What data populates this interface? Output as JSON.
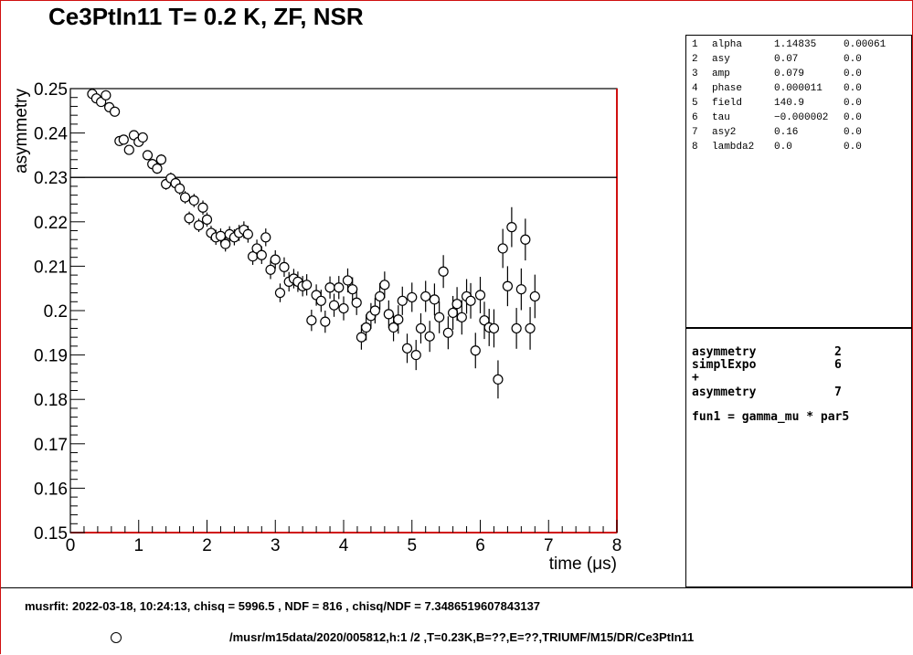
{
  "title": "Ce3PtIn11 T= 0.2 K, ZF, NSR",
  "parameters": [
    {
      "index": "1",
      "name": "alpha",
      "value": "1.14835",
      "error": "0.00061"
    },
    {
      "index": "2",
      "name": "asy",
      "value": "0.07",
      "error": "0.0"
    },
    {
      "index": "3",
      "name": "amp",
      "value": "0.079",
      "error": "0.0"
    },
    {
      "index": "4",
      "name": "phase",
      "value": "0.000011",
      "error": "0.0"
    },
    {
      "index": "5",
      "name": "field",
      "value": "140.9",
      "error": "0.0"
    },
    {
      "index": "6",
      "name": "tau",
      "value": "−0.000002",
      "error": "0.0"
    },
    {
      "index": "7",
      "name": "asy2",
      "value": "0.16",
      "error": "0.0"
    },
    {
      "index": "8",
      "name": "lambda2",
      "value": "0.0",
      "error": "0.0"
    }
  ],
  "theory": [
    {
      "name": "asymmetry",
      "param": "2"
    },
    {
      "name": "simplExpo",
      "param": "6"
    },
    {
      "name": "+",
      "param": ""
    },
    {
      "name": "asymmetry",
      "param": "7"
    }
  ],
  "function_line": "fun1 = gamma_mu * par5",
  "footer": {
    "fit_info": "musrfit: 2022-03-18, 10:24:13, chisq = 5996.5 , NDF = 816 , chisq/NDF = 7.3486519607843137",
    "run_path": "/musr/m15data/2020/005812,h:1 /2 ,T=0.23K,B=??,E=??,TRIUMF/M15/DR/Ce3PtIn11"
  },
  "colors": {
    "frame": "#d01010",
    "axis": "#000000",
    "marker_fill": "#ffffff"
  },
  "chart_data": {
    "type": "scatter",
    "title": "Ce3PtIn11 T= 0.2 K, ZF, NSR",
    "xlabel": "time (μs)",
    "ylabel": "asymmetry",
    "xlim": [
      0,
      8
    ],
    "ylim": [
      0.15,
      0.25
    ],
    "x_ticks": [
      "0",
      "1",
      "2",
      "3",
      "4",
      "5",
      "6",
      "7",
      "8"
    ],
    "y_ticks": [
      "0.15",
      "0.16",
      "0.17",
      "0.18",
      "0.19",
      "0.2",
      "0.21",
      "0.22",
      "0.23",
      "0.24",
      "0.25"
    ],
    "fit_line": {
      "y": 0.23
    },
    "grid": false,
    "series": [
      {
        "marker": "open-circle",
        "points": [
          [
            0.32,
            0.2488,
            0.0005
          ],
          [
            0.38,
            0.2478,
            0.0006
          ],
          [
            0.45,
            0.247,
            0.0006
          ],
          [
            0.52,
            0.2485,
            0.0007
          ],
          [
            0.57,
            0.2458,
            0.0008
          ],
          [
            0.65,
            0.2448,
            0.0008
          ],
          [
            0.72,
            0.2382,
            0.0009
          ],
          [
            0.78,
            0.2385,
            0.0009
          ],
          [
            0.86,
            0.2362,
            0.001
          ],
          [
            0.93,
            0.2395,
            0.001
          ],
          [
            1.0,
            0.238,
            0.001
          ],
          [
            1.06,
            0.239,
            0.0011
          ],
          [
            1.13,
            0.235,
            0.0011
          ],
          [
            1.2,
            0.233,
            0.0012
          ],
          [
            1.27,
            0.232,
            0.0012
          ],
          [
            1.33,
            0.234,
            0.0012
          ],
          [
            1.4,
            0.2285,
            0.0013
          ],
          [
            1.47,
            0.2298,
            0.0013
          ],
          [
            1.54,
            0.2287,
            0.0013
          ],
          [
            1.6,
            0.2275,
            0.0014
          ],
          [
            1.68,
            0.2255,
            0.0014
          ],
          [
            1.74,
            0.2208,
            0.0015
          ],
          [
            1.81,
            0.2248,
            0.0015
          ],
          [
            1.88,
            0.2192,
            0.0015
          ],
          [
            1.94,
            0.2232,
            0.0016
          ],
          [
            2.0,
            0.2205,
            0.0016
          ],
          [
            2.06,
            0.2175,
            0.0016
          ],
          [
            2.13,
            0.2165,
            0.0017
          ],
          [
            2.2,
            0.2168,
            0.0017
          ],
          [
            2.27,
            0.215,
            0.0017
          ],
          [
            2.33,
            0.2172,
            0.0018
          ],
          [
            2.4,
            0.2165,
            0.0018
          ],
          [
            2.47,
            0.2175,
            0.0018
          ],
          [
            2.54,
            0.2182,
            0.0019
          ],
          [
            2.6,
            0.2172,
            0.0019
          ],
          [
            2.67,
            0.2122,
            0.0019
          ],
          [
            2.73,
            0.214,
            0.002
          ],
          [
            2.8,
            0.2125,
            0.002
          ],
          [
            2.86,
            0.2165,
            0.002
          ],
          [
            2.93,
            0.2092,
            0.0021
          ],
          [
            3.0,
            0.2115,
            0.0021
          ],
          [
            3.07,
            0.204,
            0.0021
          ],
          [
            3.13,
            0.2098,
            0.0022
          ],
          [
            3.2,
            0.2065,
            0.0022
          ],
          [
            3.27,
            0.2072,
            0.0022
          ],
          [
            3.33,
            0.2065,
            0.0023
          ],
          [
            3.4,
            0.2055,
            0.0023
          ],
          [
            3.46,
            0.2058,
            0.0024
          ],
          [
            3.53,
            0.1978,
            0.0024
          ],
          [
            3.6,
            0.2035,
            0.0024
          ],
          [
            3.67,
            0.2022,
            0.0025
          ],
          [
            3.73,
            0.1975,
            0.0025
          ],
          [
            3.8,
            0.2052,
            0.0025
          ],
          [
            3.86,
            0.2012,
            0.0026
          ],
          [
            3.93,
            0.2052,
            0.0026
          ],
          [
            4.0,
            0.2005,
            0.0027
          ],
          [
            4.06,
            0.2068,
            0.0027
          ],
          [
            4.13,
            0.2048,
            0.0027
          ],
          [
            4.19,
            0.2018,
            0.0028
          ],
          [
            4.26,
            0.194,
            0.0028
          ],
          [
            4.33,
            0.1962,
            0.0029
          ],
          [
            4.4,
            0.1988,
            0.0029
          ],
          [
            4.46,
            0.2,
            0.0029
          ],
          [
            4.53,
            0.2032,
            0.003
          ],
          [
            4.6,
            0.2058,
            0.003
          ],
          [
            4.66,
            0.1992,
            0.0031
          ],
          [
            4.73,
            0.1962,
            0.0031
          ],
          [
            4.8,
            0.198,
            0.0032
          ],
          [
            4.86,
            0.2022,
            0.0032
          ],
          [
            4.93,
            0.1915,
            0.0033
          ],
          [
            5.0,
            0.203,
            0.0033
          ],
          [
            5.06,
            0.19,
            0.0034
          ],
          [
            5.13,
            0.196,
            0.0034
          ],
          [
            5.2,
            0.2032,
            0.0035
          ],
          [
            5.26,
            0.1942,
            0.0035
          ],
          [
            5.33,
            0.2025,
            0.0036
          ],
          [
            5.4,
            0.1985,
            0.0036
          ],
          [
            5.46,
            0.2088,
            0.0037
          ],
          [
            5.53,
            0.195,
            0.0037
          ],
          [
            5.6,
            0.1995,
            0.0038
          ],
          [
            5.66,
            0.2015,
            0.0038
          ],
          [
            5.73,
            0.1985,
            0.0039
          ],
          [
            5.8,
            0.2032,
            0.0039
          ],
          [
            5.86,
            0.2022,
            0.004
          ],
          [
            5.93,
            0.191,
            0.004
          ],
          [
            6.0,
            0.2035,
            0.0041
          ],
          [
            6.06,
            0.1978,
            0.0042
          ],
          [
            6.13,
            0.1962,
            0.0042
          ],
          [
            6.2,
            0.196,
            0.0043
          ],
          [
            6.26,
            0.1845,
            0.0043
          ],
          [
            6.33,
            0.214,
            0.0044
          ],
          [
            6.4,
            0.2055,
            0.0045
          ],
          [
            6.46,
            0.2188,
            0.0045
          ],
          [
            6.53,
            0.196,
            0.0046
          ],
          [
            6.6,
            0.2048,
            0.0047
          ],
          [
            6.66,
            0.216,
            0.0047
          ],
          [
            6.73,
            0.196,
            0.0048
          ],
          [
            6.8,
            0.2032,
            0.0049
          ]
        ]
      }
    ]
  }
}
